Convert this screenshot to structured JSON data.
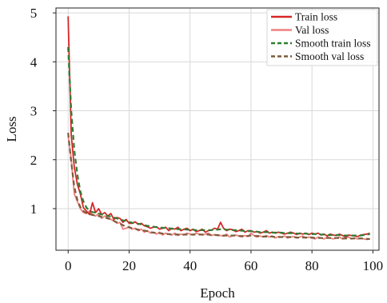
{
  "chart_data": {
    "type": "line",
    "xlabel": "Epoch",
    "ylabel": "Loss",
    "xlim": [
      -4,
      102
    ],
    "ylim": [
      0.15,
      5.1
    ],
    "xticks": [
      0,
      20,
      40,
      60,
      80,
      100
    ],
    "yticks": [
      1,
      2,
      3,
      4,
      5
    ],
    "grid": true,
    "legend_position": "top-right",
    "x": [
      0,
      1,
      2,
      3,
      4,
      5,
      6,
      7,
      8,
      9,
      10,
      11,
      12,
      13,
      14,
      15,
      16,
      17,
      18,
      19,
      20,
      21,
      22,
      23,
      24,
      25,
      26,
      27,
      28,
      29,
      30,
      31,
      32,
      33,
      34,
      35,
      36,
      37,
      38,
      39,
      40,
      41,
      42,
      43,
      44,
      45,
      46,
      47,
      48,
      49,
      50,
      51,
      52,
      53,
      54,
      55,
      56,
      57,
      58,
      59,
      60,
      61,
      62,
      63,
      64,
      65,
      66,
      67,
      68,
      69,
      70,
      71,
      72,
      73,
      74,
      75,
      76,
      77,
      78,
      79,
      80,
      81,
      82,
      83,
      84,
      85,
      86,
      87,
      88,
      89,
      90,
      91,
      92,
      93,
      94,
      95,
      96,
      97,
      98,
      99
    ],
    "series": [
      {
        "name": "Train loss",
        "color": "#d62728",
        "style": "solid",
        "values": [
          4.93,
          2.5,
          1.85,
          1.5,
          1.3,
          1.02,
          0.95,
          0.88,
          1.12,
          0.92,
          1.0,
          0.88,
          0.92,
          0.85,
          0.9,
          0.78,
          0.82,
          0.8,
          0.72,
          0.78,
          0.7,
          0.7,
          0.73,
          0.68,
          0.7,
          0.65,
          0.63,
          0.6,
          0.62,
          0.63,
          0.58,
          0.6,
          0.62,
          0.55,
          0.6,
          0.58,
          0.62,
          0.55,
          0.58,
          0.6,
          0.55,
          0.58,
          0.53,
          0.55,
          0.58,
          0.52,
          0.55,
          0.56,
          0.6,
          0.58,
          0.72,
          0.6,
          0.55,
          0.58,
          0.57,
          0.53,
          0.55,
          0.58,
          0.52,
          0.55,
          0.55,
          0.52,
          0.53,
          0.5,
          0.52,
          0.55,
          0.5,
          0.52,
          0.5,
          0.52,
          0.5,
          0.48,
          0.5,
          0.52,
          0.5,
          0.47,
          0.5,
          0.48,
          0.5,
          0.47,
          0.5,
          0.48,
          0.5,
          0.46,
          0.48,
          0.44,
          0.48,
          0.46,
          0.45,
          0.48,
          0.45,
          0.42,
          0.46,
          0.45,
          0.44,
          0.43,
          0.46,
          0.47,
          0.48,
          0.5
        ]
      },
      {
        "name": "Val loss",
        "color": "#f08080",
        "style": "solid",
        "values": [
          2.5,
          2.0,
          1.3,
          1.15,
          1.0,
          0.92,
          0.9,
          0.95,
          0.88,
          0.85,
          0.9,
          0.8,
          0.85,
          0.82,
          0.78,
          0.75,
          0.7,
          0.72,
          0.58,
          0.6,
          0.62,
          0.58,
          0.6,
          0.55,
          0.58,
          0.52,
          0.55,
          0.5,
          0.52,
          0.48,
          0.52,
          0.46,
          0.5,
          0.48,
          0.46,
          0.5,
          0.45,
          0.48,
          0.46,
          0.5,
          0.48,
          0.46,
          0.5,
          0.48,
          0.46,
          0.48,
          0.5,
          0.45,
          0.47,
          0.45,
          0.45,
          0.44,
          0.48,
          0.42,
          0.45,
          0.46,
          0.44,
          0.42,
          0.45,
          0.43,
          0.5,
          0.45,
          0.42,
          0.44,
          0.42,
          0.45,
          0.42,
          0.44,
          0.4,
          0.43,
          0.42,
          0.44,
          0.4,
          0.42,
          0.43,
          0.4,
          0.42,
          0.44,
          0.4,
          0.42,
          0.4,
          0.38,
          0.42,
          0.4,
          0.38,
          0.42,
          0.4,
          0.38,
          0.4,
          0.42,
          0.38,
          0.4,
          0.42,
          0.38,
          0.4,
          0.38,
          0.4,
          0.38,
          0.37,
          0.38
        ]
      },
      {
        "name": "Smooth train loss",
        "color": "#2e7d32",
        "style": "dashed",
        "values": [
          4.3,
          3.0,
          2.2,
          1.7,
          1.35,
          1.15,
          1.02,
          0.96,
          0.93,
          0.92,
          0.9,
          0.88,
          0.87,
          0.85,
          0.84,
          0.82,
          0.8,
          0.78,
          0.76,
          0.75,
          0.73,
          0.71,
          0.7,
          0.69,
          0.68,
          0.66,
          0.65,
          0.64,
          0.63,
          0.62,
          0.61,
          0.61,
          0.6,
          0.6,
          0.59,
          0.59,
          0.58,
          0.58,
          0.58,
          0.57,
          0.57,
          0.57,
          0.56,
          0.56,
          0.56,
          0.56,
          0.56,
          0.56,
          0.57,
          0.57,
          0.58,
          0.58,
          0.57,
          0.57,
          0.56,
          0.56,
          0.55,
          0.55,
          0.54,
          0.54,
          0.54,
          0.53,
          0.53,
          0.52,
          0.52,
          0.52,
          0.52,
          0.51,
          0.51,
          0.51,
          0.51,
          0.5,
          0.5,
          0.5,
          0.5,
          0.49,
          0.49,
          0.49,
          0.49,
          0.48,
          0.48,
          0.48,
          0.48,
          0.47,
          0.47,
          0.46,
          0.46,
          0.46,
          0.46,
          0.46,
          0.45,
          0.45,
          0.45,
          0.45,
          0.45,
          0.45,
          0.45,
          0.46,
          0.47,
          0.48
        ]
      },
      {
        "name": "Smooth val loss",
        "color": "#7a5c3a",
        "style": "dashed",
        "values": [
          2.55,
          1.95,
          1.45,
          1.18,
          1.03,
          0.95,
          0.91,
          0.89,
          0.87,
          0.86,
          0.85,
          0.83,
          0.82,
          0.8,
          0.78,
          0.75,
          0.72,
          0.7,
          0.66,
          0.64,
          0.62,
          0.6,
          0.59,
          0.57,
          0.56,
          0.55,
          0.54,
          0.52,
          0.51,
          0.5,
          0.5,
          0.49,
          0.48,
          0.48,
          0.47,
          0.47,
          0.47,
          0.47,
          0.47,
          0.47,
          0.47,
          0.47,
          0.47,
          0.47,
          0.47,
          0.47,
          0.47,
          0.46,
          0.46,
          0.46,
          0.45,
          0.45,
          0.45,
          0.45,
          0.45,
          0.45,
          0.44,
          0.44,
          0.44,
          0.44,
          0.45,
          0.44,
          0.44,
          0.44,
          0.43,
          0.43,
          0.43,
          0.43,
          0.42,
          0.42,
          0.42,
          0.42,
          0.42,
          0.42,
          0.42,
          0.41,
          0.41,
          0.41,
          0.41,
          0.41,
          0.41,
          0.4,
          0.4,
          0.4,
          0.4,
          0.4,
          0.4,
          0.4,
          0.4,
          0.4,
          0.39,
          0.39,
          0.39,
          0.39,
          0.39,
          0.39,
          0.39,
          0.39,
          0.38,
          0.38
        ]
      }
    ]
  }
}
